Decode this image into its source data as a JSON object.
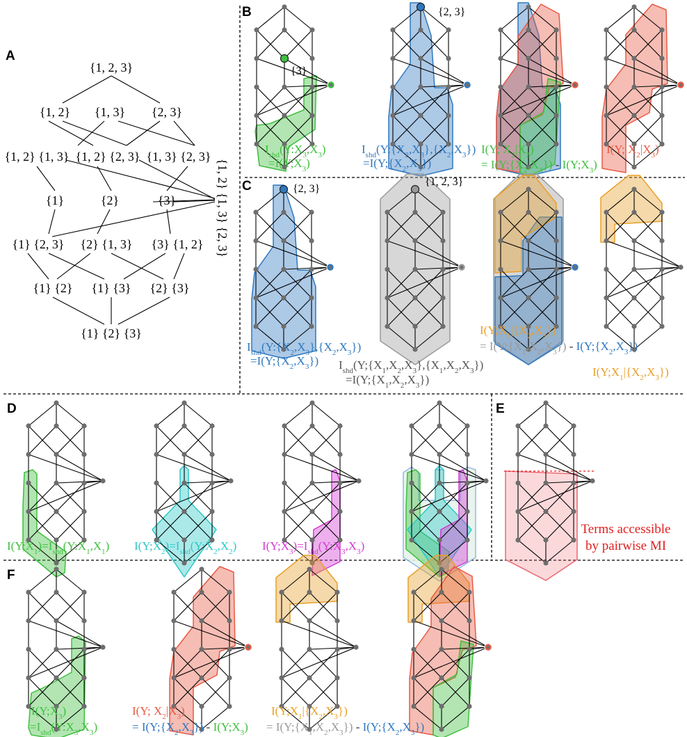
{
  "colors": {
    "green": "#3fbf3f",
    "blue": "#2f78c0",
    "red": "#e85a44",
    "orange": "#e8a02a",
    "gray": "#9a9a9a",
    "cyan": "#2cc7c7",
    "magenta": "#d23ad2",
    "pink": "#ee6670",
    "note": "#e02020",
    "edge": "#000000",
    "node": "#6e6e6e"
  },
  "panels": [
    "A",
    "B",
    "C",
    "D",
    "E",
    "F"
  ],
  "lattice_labels": {
    "top": "{1, 2, 3}",
    "row2": [
      "{1, 2}",
      "{1, 3}",
      "{2, 3}"
    ],
    "row3": [
      "{1, 2} {1, 3}",
      "{1, 2} {2, 3}",
      "{1, 3} {2, 3}"
    ],
    "row4": [
      "{1}",
      "{2}",
      "{3}"
    ],
    "row5": [
      "{1} {2, 3}",
      "{2} {1, 3}",
      "{3} {1, 2}"
    ],
    "row6": [
      "{1} {2}",
      "{1} {3}",
      "{2} {3}"
    ],
    "bottom": "{1} {2} {3}",
    "side": "{1, 2} {1, 3} {2, 3}"
  },
  "node_labels": {
    "b1": "{3}",
    "b2": "{2, 3}",
    "c1": "{2, 3}",
    "c2": "{1, 2, 3}"
  },
  "captions": {
    "B1": [
      "I_shd(Y:X_3,X_3)",
      "=I(Y;X_3)"
    ],
    "B2": [
      "I_shd(Y:{X_2,X_3},{X_2,X_3})",
      "=I(Y;{X_2,X_3})"
    ],
    "B3a": "I(Y; X_2|X_3)",
    "B3b": [
      "= I(Y;{X_2,X_3})",
      " - ",
      "I(Y;X_3)"
    ],
    "B4": "I(Y; X_2|X_3)",
    "C1": [
      "I_shd(Y:{X_2,X_3},{X_2,X_3})",
      "=I(Y;{X_2,X_3})"
    ],
    "C2": [
      "I_shd(Y;{X_1,X_2,X_3},{X_1,X_2,X_3})",
      "=I(Y;{X_1,X_2,X_3})"
    ],
    "C3a": "I(Y;X_1|{X_2,X_3})",
    "C3b": [
      "= I(Y;{X_1,X_2,X_3})",
      " - ",
      "I(Y;{X_2,X_3})"
    ],
    "C4": "I(Y;X_1|{X_2,X_3})",
    "D1": "I(Y;X_1)=I_shd(Y:X_1,X_1)",
    "D2": "I(Y;X_2)=I_shd(Y:X_2,X_2)",
    "D3": "I(Y;X_3)=I_shd(Y:X_3,X_3)",
    "E": [
      "Terms accessible",
      "by pairwise MI"
    ],
    "F1": [
      "I(Y;X_3)",
      "=I_shd(Y:X_3,X_3)"
    ],
    "F2a": "I(Y; X_2|X_3)",
    "F2b": [
      "= I(Y;{X_2,X_3})",
      " - ",
      "I(Y;X_3)"
    ],
    "F3a": "I(Y;X_1|{X_2,X_3})",
    "F3b": [
      "= I(Y;{X_1,X_2,X_3})",
      " - ",
      "I(Y;{X_2,X_3})"
    ]
  }
}
